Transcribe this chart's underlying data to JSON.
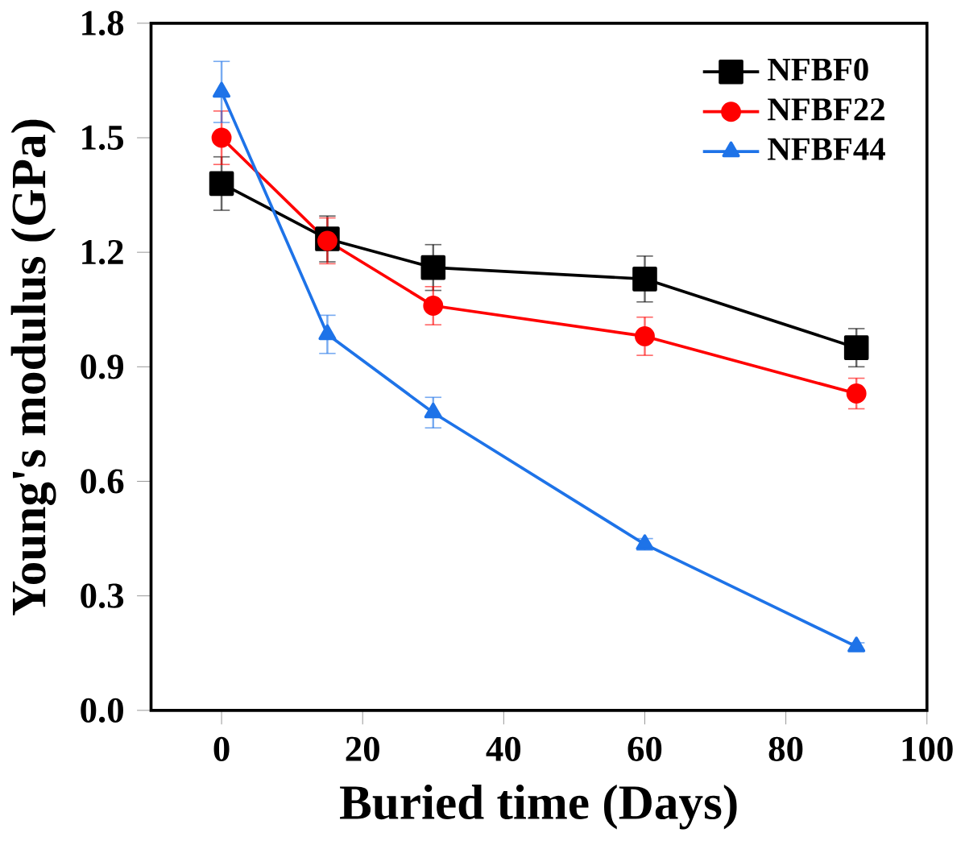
{
  "chart_data": {
    "type": "line",
    "xlabel": "Buried time (Days)",
    "ylabel": "Young's modulus (GPa)",
    "x": [
      0,
      15,
      30,
      60,
      90
    ],
    "series": [
      {
        "name": "NFBF0",
        "color": "#000000",
        "marker": "square",
        "values": [
          1.38,
          1.235,
          1.16,
          1.13,
          0.95
        ],
        "errors": [
          0.07,
          0.06,
          0.06,
          0.06,
          0.05
        ]
      },
      {
        "name": "NFBF22",
        "color": "#ff0000",
        "marker": "circle",
        "values": [
          1.5,
          1.23,
          1.06,
          0.98,
          0.83
        ],
        "errors": [
          0.07,
          0.06,
          0.05,
          0.05,
          0.04
        ]
      },
      {
        "name": "NFBF44",
        "color": "#1e73e8",
        "marker": "triangle",
        "values": [
          1.62,
          0.985,
          0.78,
          0.435,
          0.167
        ],
        "errors": [
          0.08,
          0.05,
          0.04,
          0.015,
          0.01
        ]
      }
    ],
    "xlim": [
      -10,
      100
    ],
    "ylim": [
      0,
      1.8
    ],
    "xticks": [
      0,
      20,
      40,
      60,
      80,
      100
    ],
    "yticks": [
      {
        "value": 0,
        "label": "0.0"
      },
      {
        "value": 0.3,
        "label": "0.3"
      },
      {
        "value": 0.6,
        "label": "0.6"
      },
      {
        "value": 0.9,
        "label": "0.9"
      },
      {
        "value": 1.2,
        "label": "1.2"
      },
      {
        "value": 1.5,
        "label": "1.5"
      },
      {
        "value": 1.8,
        "label": "1.8"
      }
    ],
    "legend": "top right",
    "grid": false,
    "line_style": "solid"
  }
}
